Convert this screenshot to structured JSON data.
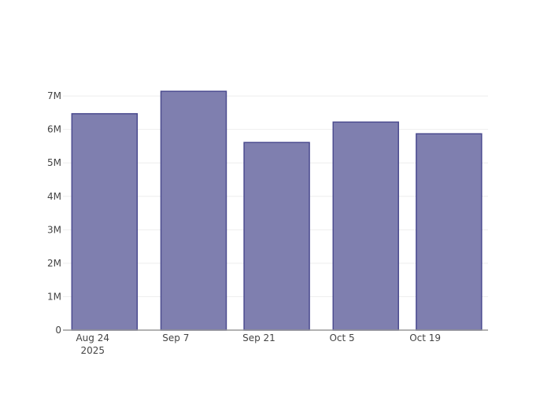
{
  "chart_data": {
    "type": "bar",
    "title": "",
    "xlabel": "",
    "ylabel": "",
    "x": [
      "2025-08-26",
      "2025-09-10",
      "2025-09-24",
      "2025-10-09",
      "2025-10-23"
    ],
    "values": [
      6470000,
      7140000,
      5610000,
      6220000,
      5870000
    ],
    "bar_width_days": 11,
    "xlim": [
      "2025-08-19",
      "2025-10-29T14:00"
    ],
    "ylim": [
      0,
      7520000
    ],
    "x_ticks": [
      {
        "date": "2025-08-24",
        "label": "Aug 24",
        "sublabel": "2025"
      },
      {
        "date": "2025-09-07",
        "label": "Sep 7"
      },
      {
        "date": "2025-09-21",
        "label": "Sep 21"
      },
      {
        "date": "2025-10-05",
        "label": "Oct 5"
      },
      {
        "date": "2025-10-19",
        "label": "Oct 19"
      }
    ],
    "y_ticks": [
      {
        "value": 0,
        "label": "0"
      },
      {
        "value": 1000000,
        "label": "1M"
      },
      {
        "value": 2000000,
        "label": "2M"
      },
      {
        "value": 3000000,
        "label": "3M"
      },
      {
        "value": 4000000,
        "label": "4M"
      },
      {
        "value": 5000000,
        "label": "5M"
      },
      {
        "value": 6000000,
        "label": "6M"
      },
      {
        "value": 7000000,
        "label": "7M"
      }
    ],
    "grid": true,
    "legend": "none",
    "colors": {
      "bar_fill": "#7f7faf",
      "bar_stroke": "#4b4b8f",
      "grid": "#eeeeee",
      "axis": "#999999"
    }
  }
}
